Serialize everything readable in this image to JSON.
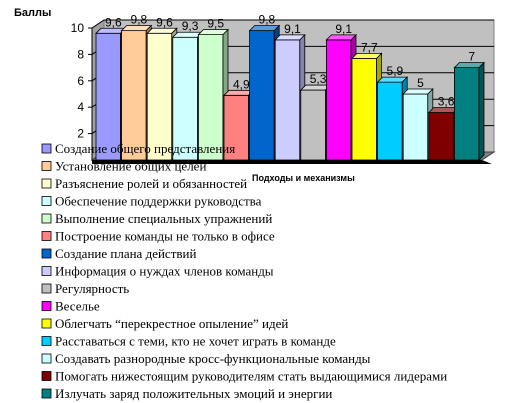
{
  "chart_data": {
    "type": "bar",
    "ylabel": "Баллы",
    "xlabel": "Подходы и механизмы",
    "ylim": [
      0,
      10
    ],
    "yticks": [
      2,
      4,
      6,
      8,
      10
    ],
    "grid": true,
    "legend_position": "bottom-left",
    "series": [
      {
        "name": "Создание общего представления",
        "value": 9.6,
        "label": "9,6",
        "color": "#9999ff"
      },
      {
        "name": "Установление общих целей",
        "value": 9.8,
        "label": "9,8",
        "color": "#ffcc99"
      },
      {
        "name": "Разъяснение ролей и обязанностей",
        "value": 9.6,
        "label": "9,6",
        "color": "#ffffcc"
      },
      {
        "name": "Обеспечение поддержки руководства",
        "value": 9.3,
        "label": "9,3",
        "color": "#ccffff"
      },
      {
        "name": "Выполнение специальных упражнений",
        "value": 9.5,
        "label": "9,5",
        "color": "#ccffcc"
      },
      {
        "name": "Построение команды не только в офисе",
        "value": 4.9,
        "label": "4,9",
        "color": "#ff8080"
      },
      {
        "name": "Создание плана действий",
        "value": 9.8,
        "label": "9,8",
        "color": "#0066cc"
      },
      {
        "name": "Информация о нуждах членов команды",
        "value": 9.1,
        "label": "9,1",
        "color": "#ccccff"
      },
      {
        "name": "Регулярность",
        "value": 5.3,
        "label": "5,3",
        "color": "#c0c0c0"
      },
      {
        "name": "Веселье",
        "value": 9.1,
        "label": "9,1",
        "color": "#ff00ff"
      },
      {
        "name": "Облегчать “перекрестное опыление” идей",
        "value": 7.7,
        "label": "7,7",
        "color": "#ffff00"
      },
      {
        "name": "Расставаться с теми, кто не хочет играть в команде",
        "value": 5.9,
        "label": "5,9",
        "color": "#00ccff"
      },
      {
        "name": "Создавать разнородные кросс-функциональные команды",
        "value": 5,
        "label": "5",
        "color": "#ccffff"
      },
      {
        "name": "Помогать нижестоящим руководителям стать выдающимися лидерами",
        "value": 3.6,
        "label": "3,6",
        "color": "#800000"
      },
      {
        "name": "Излучать заряд положительных эмоций и энергии",
        "value": 7,
        "label": "7",
        "color": "#008080"
      }
    ]
  }
}
